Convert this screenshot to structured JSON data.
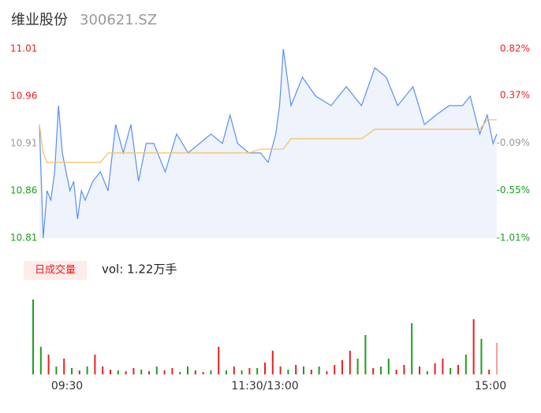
{
  "header": {
    "name": "维业股份",
    "code": "300621.SZ"
  },
  "chart_data": [
    {
      "type": "line",
      "x": [
        0,
        2,
        4,
        6,
        8,
        10,
        12,
        14,
        16,
        18,
        20,
        22,
        24,
        28,
        32,
        36,
        40,
        44,
        48,
        52,
        56,
        60,
        66,
        72,
        78,
        84,
        90,
        96,
        100,
        104,
        110,
        116,
        120,
        124,
        126,
        128,
        132,
        138,
        145,
        153,
        161,
        169,
        176,
        182,
        188,
        196,
        202,
        208,
        215,
        222,
        226,
        231,
        235,
        238,
        240
      ],
      "series": [
        {
          "color": "#5b8ff0",
          "values": [
            10.93,
            10.81,
            10.86,
            10.85,
            10.88,
            10.95,
            10.9,
            10.88,
            10.86,
            10.87,
            10.83,
            10.86,
            10.85,
            10.87,
            10.88,
            10.86,
            10.93,
            10.9,
            10.93,
            10.87,
            10.91,
            10.91,
            10.88,
            10.92,
            10.9,
            10.91,
            10.92,
            10.91,
            10.94,
            10.91,
            10.9,
            10.9,
            10.89,
            10.92,
            10.95,
            11.01,
            10.95,
            10.98,
            10.96,
            10.95,
            10.97,
            10.95,
            10.99,
            10.98,
            10.95,
            10.97,
            10.93,
            10.94,
            10.95,
            10.95,
            10.96,
            10.92,
            10.94,
            10.91,
            10.92
          ]
        },
        {
          "color": "#f5c15a",
          "values": [
            10.93,
            10.9,
            10.89,
            10.89,
            10.89,
            10.89,
            10.89,
            10.89,
            10.89,
            10.89,
            10.89,
            10.89,
            10.89,
            10.89,
            10.89,
            10.9,
            10.9,
            10.9,
            10.9,
            10.9,
            10.9,
            10.9,
            10.9,
            10.9,
            10.9,
            10.9,
            10.9,
            10.9,
            10.9,
            10.9,
            10.9,
            10.904,
            10.904,
            10.904,
            10.904,
            10.904,
            10.915,
            10.915,
            10.915,
            10.915,
            10.915,
            10.915,
            10.925,
            10.925,
            10.925,
            10.925,
            10.925,
            10.925,
            10.925,
            10.925,
            10.925,
            10.925,
            10.935,
            10.935,
            10.935
          ]
        }
      ],
      "xlim": [
        0,
        240
      ],
      "ylim": [
        10.81,
        11.01
      ],
      "yticks": [
        10.81,
        10.86,
        10.91,
        10.96,
        11.01
      ],
      "y2lim": [
        -1.01,
        0.82
      ],
      "y2ticks": [
        {
          "value": -1.01,
          "label": "-1.01%"
        },
        {
          "value": -0.55,
          "label": "-0.55%"
        },
        {
          "value": -0.09,
          "label": "-0.09%"
        },
        {
          "value": 0.37,
          "label": "0.37%"
        },
        {
          "value": 0.82,
          "label": "0.82%"
        }
      ],
      "tick_colors": [
        "#1aa01a",
        "#1aa01a",
        "#999999",
        "#e8211f",
        "#e8211f"
      ],
      "area_color": "#eef3fc",
      "grid": false
    },
    {
      "type": "bar",
      "title": "日成交量",
      "annotation": "vol: 1.22万手",
      "x": [
        0,
        4,
        8,
        12,
        16,
        20,
        24,
        28,
        32,
        36,
        40,
        44,
        48,
        52,
        56,
        60,
        64,
        68,
        72,
        76,
        80,
        84,
        88,
        92,
        96,
        100,
        104,
        108,
        112,
        116,
        120,
        124,
        128,
        132,
        136,
        140,
        144,
        148,
        152,
        156,
        160,
        164,
        168,
        172,
        176,
        180,
        184,
        188,
        192,
        196,
        200,
        204,
        208,
        212,
        216,
        220,
        224,
        228,
        232,
        236,
        240
      ],
      "values": [
        95,
        35,
        25,
        10,
        20,
        8,
        5,
        10,
        25,
        10,
        6,
        5,
        4,
        8,
        6,
        4,
        10,
        5,
        8,
        3,
        10,
        5,
        3,
        5,
        35,
        5,
        10,
        5,
        8,
        8,
        15,
        30,
        10,
        6,
        12,
        10,
        6,
        10,
        4,
        12,
        18,
        30,
        20,
        50,
        8,
        10,
        20,
        6,
        12,
        65,
        10,
        4,
        14,
        20,
        8,
        12,
        25,
        70,
        45,
        6,
        40
      ],
      "bar_colors": [
        "#1aa01a",
        "#1aa01a",
        "#e8211f",
        "#1aa01a",
        "#e8211f",
        "#1aa01a",
        "#e8211f",
        "#1aa01a",
        "#e8211f",
        "#e8211f",
        "#e8211f",
        "#1aa01a",
        "#e8211f",
        "#e8211f",
        "#1aa01a",
        "#e8211f",
        "#1aa01a",
        "#e8211f",
        "#e8211f",
        "#1aa01a",
        "#1aa01a",
        "#e8211f",
        "#e8211f",
        "#1aa01a",
        "#e8211f",
        "#1aa01a",
        "#e8211f",
        "#1aa01a",
        "#e8211f",
        "#1aa01a",
        "#e8211f",
        "#e8211f",
        "#e8211f",
        "#1aa01a",
        "#e8211f",
        "#1aa01a",
        "#e8211f",
        "#1aa01a",
        "#e8211f",
        "#e8211f",
        "#e8211f",
        "#e8211f",
        "#1aa01a",
        "#1aa01a",
        "#e8211f",
        "#1aa01a",
        "#1aa01a",
        "#e8211f",
        "#e8211f",
        "#1aa01a",
        "#e8211f",
        "#1aa01a",
        "#e8211f",
        "#e8211f",
        "#1aa01a",
        "#e8211f",
        "#1aa01a",
        "#e8211f",
        "#1aa01a",
        "#e8211f",
        "#f4a0a0"
      ],
      "xlim": [
        0,
        240
      ],
      "ylim": [
        0,
        100
      ],
      "xticks": [
        {
          "value": 0,
          "label": "09:30"
        },
        {
          "value": 120,
          "label": "11:30/13:00"
        },
        {
          "value": 240,
          "label": "15:00"
        }
      ]
    }
  ]
}
